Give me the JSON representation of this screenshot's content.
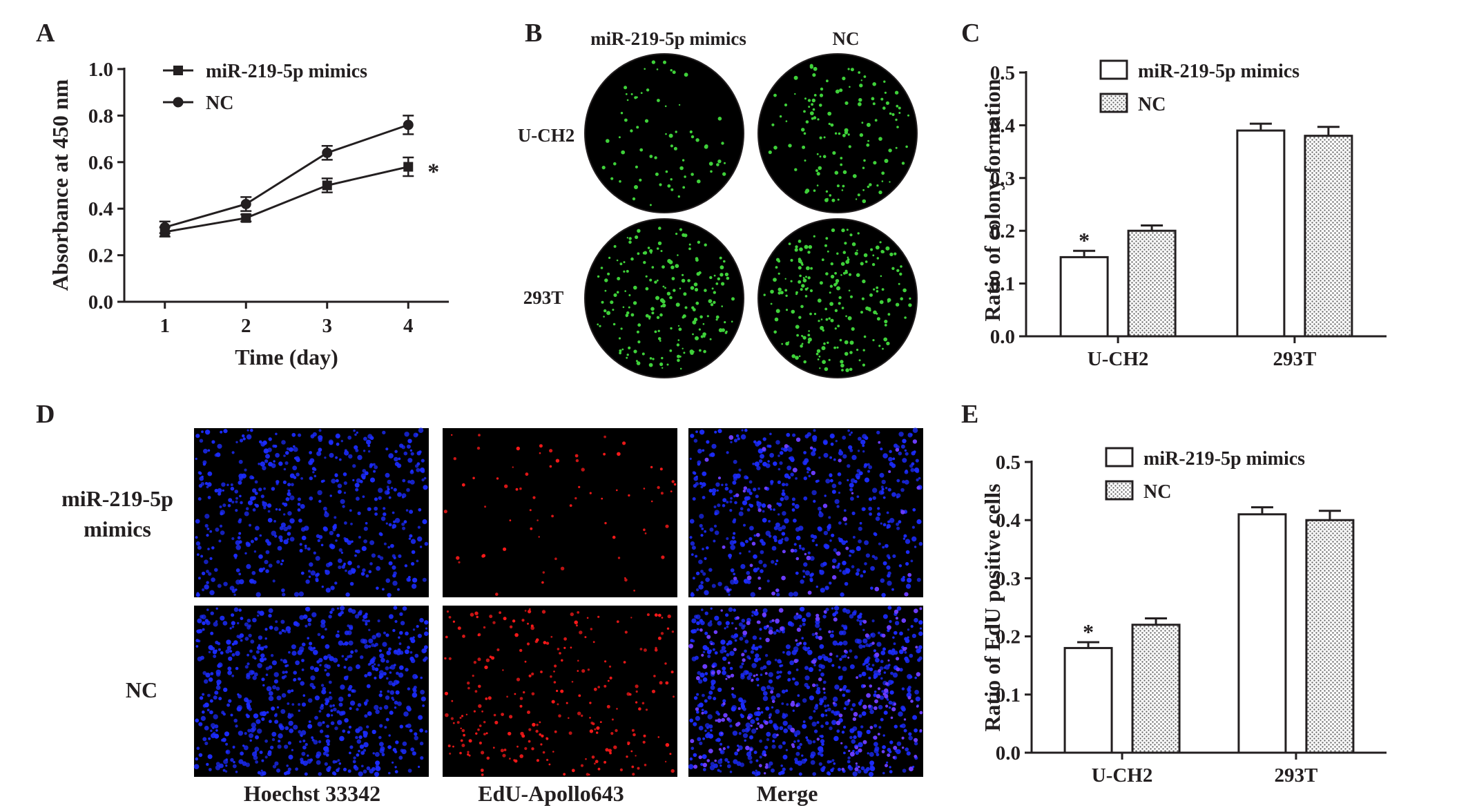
{
  "colors": {
    "ink": "#231f20",
    "colony": "#3fd13a",
    "hoechst": "#1c2cff",
    "edu": "#ff1a1a",
    "merge": "#6b3cff",
    "hatch": "#9a9a9a"
  },
  "panels": {
    "A": {
      "letter": "A"
    },
    "B": {
      "letter": "B",
      "col_labels": [
        "miR-219-5p mimics",
        "NC"
      ],
      "row_labels": [
        "U-CH2",
        "293T"
      ]
    },
    "C": {
      "letter": "C"
    },
    "D": {
      "letter": "D",
      "row_labels": [
        "miR-219-5p\nmimics",
        "NC"
      ],
      "row_label_lines": [
        [
          "miR-219-5p",
          "mimics"
        ],
        [
          "NC"
        ]
      ],
      "col_labels": [
        "Hoechst 33342",
        "EdU-Apollo643",
        "Merge"
      ]
    },
    "E": {
      "letter": "E"
    }
  },
  "chart_data": [
    {
      "panel": "A",
      "type": "line",
      "xlabel": "Time  (day)",
      "ylabel": "Absorbance at 450 nm",
      "x": [
        1,
        2,
        3,
        4
      ],
      "xlim": [
        0.5,
        4.5
      ],
      "ylim": [
        0.0,
        1.0
      ],
      "yticks": [
        "0.0",
        "0.2",
        "0.4",
        "0.6",
        "0.8",
        "1.0"
      ],
      "xticks": [
        "1",
        "2",
        "3",
        "4"
      ],
      "legend_position": "top-left",
      "series": [
        {
          "name": "miR-219-5p mimics",
          "marker": "square",
          "values": [
            0.3,
            0.36,
            0.5,
            0.58
          ],
          "errors": [
            0.02,
            0.015,
            0.03,
            0.04
          ]
        },
        {
          "name": "NC",
          "marker": "circle",
          "values": [
            0.32,
            0.42,
            0.64,
            0.76
          ],
          "errors": [
            0.025,
            0.03,
            0.03,
            0.04
          ]
        }
      ],
      "annotations": [
        {
          "text": "*",
          "x": 4,
          "y": 0.58
        }
      ]
    },
    {
      "panel": "C",
      "type": "bar",
      "ylabel": "Ratio of colony formation",
      "categories": [
        "U-CH2",
        "293T"
      ],
      "ylim": [
        0.0,
        0.5
      ],
      "yticks": [
        "0.0",
        "0.1",
        "0.2",
        "0.3",
        "0.4",
        "0.5"
      ],
      "legend_position": "top-left",
      "series": [
        {
          "name": "miR-219-5p mimics",
          "fill": "white",
          "values": [
            0.15,
            0.39
          ],
          "errors": [
            0.012,
            0.013
          ]
        },
        {
          "name": "NC",
          "fill": "hatched",
          "values": [
            0.2,
            0.38
          ],
          "errors": [
            0.01,
            0.017
          ]
        }
      ],
      "annotations": [
        {
          "text": "*",
          "category": "U-CH2",
          "series": 0
        }
      ]
    },
    {
      "panel": "E",
      "type": "bar",
      "ylabel": "Ratio of EdU positive cells",
      "categories": [
        "U-CH2",
        "293T"
      ],
      "ylim": [
        0.0,
        0.5
      ],
      "yticks": [
        "0.0",
        "0.1",
        "0.2",
        "0.3",
        "0.4",
        "0.5"
      ],
      "legend_position": "top-left",
      "series": [
        {
          "name": "miR-219-5p mimics",
          "fill": "white",
          "values": [
            0.18,
            0.41
          ],
          "errors": [
            0.01,
            0.012
          ]
        },
        {
          "name": "NC",
          "fill": "hatched",
          "values": [
            0.22,
            0.4
          ],
          "errors": [
            0.011,
            0.016
          ]
        }
      ],
      "annotations": [
        {
          "text": "*",
          "category": "U-CH2",
          "series": 0
        }
      ]
    }
  ]
}
